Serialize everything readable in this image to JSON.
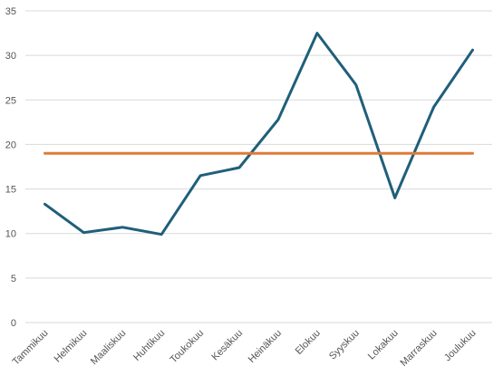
{
  "chart_data": {
    "type": "line",
    "categories": [
      "Tammikuu",
      "Helmikuu",
      "Maaliskuu",
      "Huhtikuu",
      "Toukokuu",
      "Kesäkuu",
      "Heinäkuu",
      "Elokuu",
      "Syyskuu",
      "Lokakuu",
      "Marraskuu",
      "Joulukuu"
    ],
    "series": [
      {
        "values": [
          13.3,
          10.1,
          10.7,
          9.9,
          16.5,
          17.4,
          22.8,
          32.5,
          26.7,
          14.0,
          24.2,
          30.6
        ],
        "color": "#1f5f7a"
      },
      {
        "values": [
          19.0,
          19.0,
          19.0,
          19.0,
          19.0,
          19.0,
          19.0,
          19.0,
          19.0,
          19.0,
          19.0,
          19.0
        ],
        "color": "#e07b39"
      }
    ],
    "yticks": [
      "0",
      "5",
      "10",
      "15",
      "20",
      "25",
      "30",
      "35"
    ],
    "ylim": [
      0,
      35
    ],
    "grid": true,
    "title": "",
    "xlabel": "",
    "ylabel": "",
    "gridColor": "#d9d9d9"
  }
}
